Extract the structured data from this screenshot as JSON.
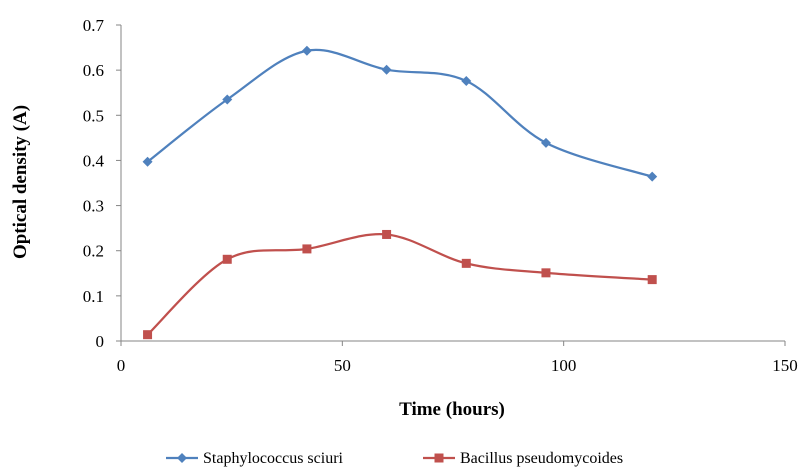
{
  "chart_data": {
    "type": "line",
    "title": "",
    "xlabel": "Time (hours)",
    "ylabel": "Optical density (A)",
    "xlim": [
      0,
      150
    ],
    "ylim": [
      0,
      0.7
    ],
    "xticks": [
      "0",
      "50",
      "100",
      "150"
    ],
    "yticks": [
      "0",
      "0.1",
      "0.2",
      "0.3",
      "0.4",
      "0.5",
      "0.6",
      "0.7"
    ],
    "grid": false,
    "legend_position": "bottom",
    "smooth": true,
    "series": [
      {
        "name": "Staphylococcus sciuri",
        "color": "#4F81BD",
        "marker": "diamond",
        "x": [
          6,
          24,
          42,
          60,
          78,
          96,
          120
        ],
        "y": [
          0.397,
          0.535,
          0.643,
          0.601,
          0.576,
          0.439,
          0.364
        ]
      },
      {
        "name": "Bacillus pseudomycoides",
        "color": "#C0504D",
        "marker": "square",
        "x": [
          6,
          24,
          42,
          60,
          78,
          96,
          120
        ],
        "y": [
          0.014,
          0.181,
          0.204,
          0.236,
          0.172,
          0.151,
          0.136
        ]
      }
    ]
  }
}
